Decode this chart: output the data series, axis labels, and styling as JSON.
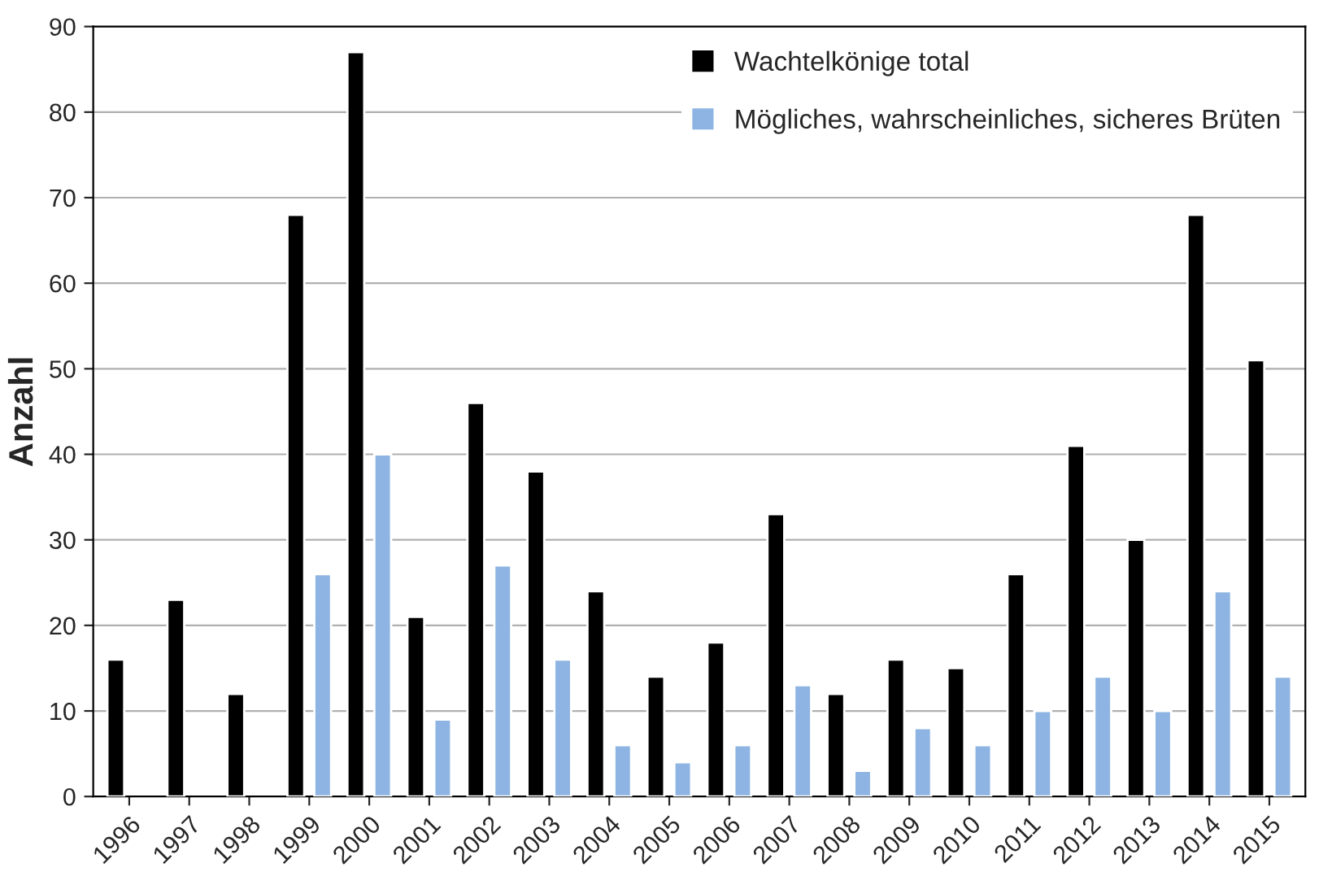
{
  "chart_data": {
    "type": "bar",
    "ylabel": "Anzahl",
    "categories": [
      "1996",
      "1997",
      "1998",
      "1999",
      "2000",
      "2001",
      "2002",
      "2003",
      "2004",
      "2005",
      "2006",
      "2007",
      "2008",
      "2009",
      "2010",
      "2011",
      "2012",
      "2013",
      "2014",
      "2015"
    ],
    "series": [
      {
        "name": "Wachtelkönige total",
        "color": "#000000",
        "values": [
          16,
          23,
          12,
          68,
          87,
          21,
          46,
          38,
          24,
          14,
          18,
          33,
          12,
          16,
          15,
          26,
          41,
          30,
          68,
          51
        ]
      },
      {
        "name": "Mögliches, wahrscheinliches, sicheres Brüten",
        "color": "#8db4e2",
        "values": [
          null,
          null,
          null,
          26,
          40,
          9,
          27,
          16,
          6,
          4,
          6,
          13,
          3,
          8,
          6,
          10,
          14,
          10,
          24,
          14
        ]
      }
    ],
    "ylim": [
      0,
      90
    ],
    "yticks": [
      0,
      10,
      20,
      30,
      40,
      50,
      60,
      70,
      80,
      90
    ],
    "grid": "y",
    "legend": "top right"
  }
}
